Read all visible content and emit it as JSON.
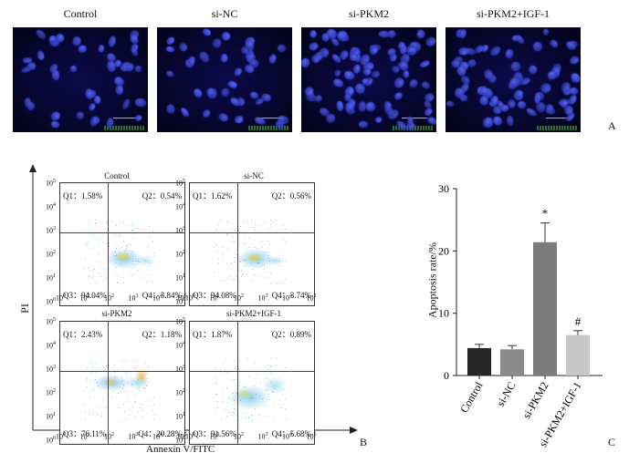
{
  "panel_a": {
    "letter": "A",
    "titles": [
      "Control",
      "si-NC",
      "si-PKM2",
      "si-PKM2+IGF-1"
    ]
  },
  "panel_b": {
    "letter": "B",
    "y_axis_label": "PI",
    "x_axis_label": "Annexin V/FITC",
    "axis_tick_base": "10",
    "axis_tick_exponents": [
      "0",
      "1",
      "2",
      "3",
      "4",
      "5"
    ],
    "plots": [
      {
        "title": "Control",
        "q1": "Q1：1.58%",
        "q2": "Q2：0.54%",
        "q3": "Q3：94.04%",
        "q4": "Q4：3.84%"
      },
      {
        "title": "si-NC",
        "q1": "Q1：1.62%",
        "q2": "Q2：0.56%",
        "q3": "Q3：94.08%",
        "q4": "Q4：3.74%"
      },
      {
        "title": "si-PKM2",
        "q1": "Q1：2.43%",
        "q2": "Q2：1.18%",
        "q3": "Q3：76.11%",
        "q4": "Q4：20.28%"
      },
      {
        "title": "si-PKM2+IGF-1",
        "q1": "Q1：1.87%",
        "q2": "Q2：0.89%",
        "q3": "Q3：91.56%",
        "q4": "Q4：5.68%"
      }
    ]
  },
  "chart_data": {
    "type": "bar",
    "categories": [
      "Control",
      "si-NC",
      "si-PKM2",
      "si-PKM2+IGF-1"
    ],
    "values": [
      4.4,
      4.2,
      21.4,
      6.5
    ],
    "errors": [
      0.6,
      0.6,
      3.1,
      0.7
    ],
    "annotations": [
      "",
      "",
      "*",
      "#"
    ],
    "ylabel": "Apoptosis rate/%",
    "ylim": [
      0,
      30
    ],
    "yticks": [
      0,
      10,
      20,
      30
    ],
    "colors": [
      "#262626",
      "#8a8a8a",
      "#7c7c7c",
      "#c8c8c8"
    ],
    "letter": "C"
  }
}
